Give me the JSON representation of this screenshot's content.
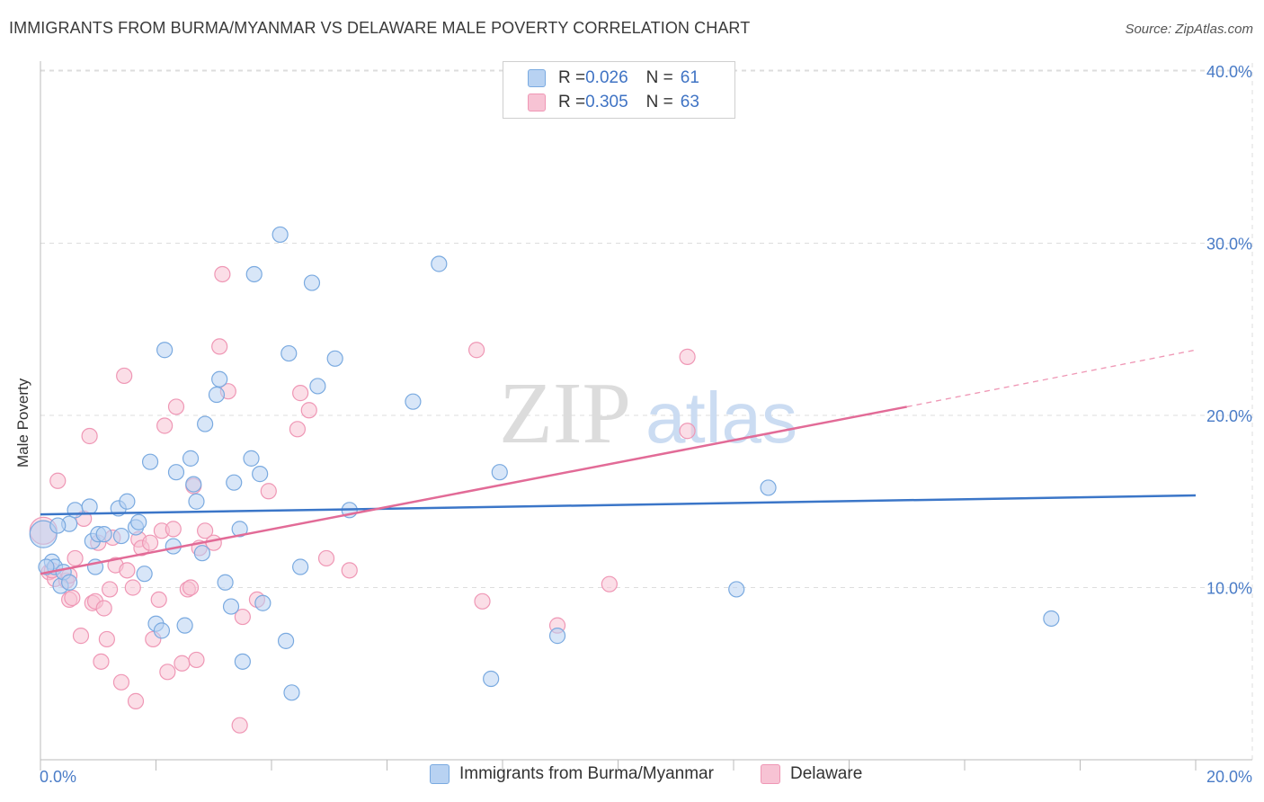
{
  "title": "IMMIGRANTS FROM BURMA/MYANMAR VS DELAWARE MALE POVERTY CORRELATION CHART",
  "source": "Source: ZipAtlas.com",
  "watermark": {
    "zip": "ZIP",
    "atlas": "atlas"
  },
  "legend": {
    "rows": [
      {
        "r_label": "R = ",
        "r_value": "0.026",
        "n_label": "N = ",
        "n_value": "61"
      },
      {
        "r_label": "R = ",
        "r_value": "0.305",
        "n_label": "N = ",
        "n_value": "63"
      }
    ]
  },
  "colors": {
    "blue_fill": "#b8d2f2",
    "blue_stroke": "#7aaae0",
    "blue_line": "#3b76c8",
    "pink_fill": "#f7c3d4",
    "pink_stroke": "#ef97b5",
    "pink_line": "#e26b97",
    "tick": "#4a7cc7",
    "grid": "#dddddd"
  },
  "chart_data": {
    "type": "scatter",
    "title": "IMMIGRANTS FROM BURMA/MYANMAR VS DELAWARE MALE POVERTY CORRELATION CHART",
    "xlabel": "",
    "ylabel": "Male Poverty",
    "xlim": [
      0,
      20
    ],
    "ylim": [
      0,
      41
    ],
    "x_tick_labels": [
      {
        "value": 0,
        "label": "0.0%"
      },
      {
        "value": 20,
        "label": "20.0%"
      }
    ],
    "y_tick_labels": [
      {
        "value": 10,
        "label": "10.0%"
      },
      {
        "value": 20,
        "label": "20.0%"
      },
      {
        "value": 30,
        "label": "30.0%"
      },
      {
        "value": 40,
        "label": "40.0%"
      }
    ],
    "grid": true,
    "legend_position": "bottom",
    "series": [
      {
        "name": "Immigrants from Burma/Myanmar",
        "color": "#b8d2f2",
        "points": [
          [
            0.05,
            13.1
          ],
          [
            0.2,
            11.5
          ],
          [
            0.25,
            11.2
          ],
          [
            0.35,
            10.1
          ],
          [
            0.4,
            10.9
          ],
          [
            0.5,
            10.3
          ],
          [
            0.5,
            13.7
          ],
          [
            0.6,
            14.5
          ],
          [
            0.85,
            14.7
          ],
          [
            0.9,
            12.7
          ],
          [
            0.95,
            11.2
          ],
          [
            1.0,
            13.1
          ],
          [
            1.1,
            13.1
          ],
          [
            1.35,
            14.6
          ],
          [
            1.4,
            13.0
          ],
          [
            1.5,
            15.0
          ],
          [
            1.65,
            13.5
          ],
          [
            1.7,
            13.8
          ],
          [
            1.8,
            10.8
          ],
          [
            1.9,
            17.3
          ],
          [
            2.0,
            7.9
          ],
          [
            2.1,
            7.5
          ],
          [
            2.15,
            23.8
          ],
          [
            2.3,
            12.4
          ],
          [
            2.35,
            16.7
          ],
          [
            2.5,
            7.8
          ],
          [
            2.6,
            17.5
          ],
          [
            2.65,
            16.0
          ],
          [
            2.7,
            15.0
          ],
          [
            2.8,
            12.0
          ],
          [
            2.85,
            19.5
          ],
          [
            3.05,
            21.2
          ],
          [
            3.1,
            22.1
          ],
          [
            3.2,
            10.3
          ],
          [
            3.3,
            8.9
          ],
          [
            3.35,
            16.1
          ],
          [
            3.45,
            13.4
          ],
          [
            3.5,
            5.7
          ],
          [
            3.65,
            17.5
          ],
          [
            3.7,
            28.2
          ],
          [
            3.8,
            16.6
          ],
          [
            3.85,
            9.1
          ],
          [
            4.15,
            30.5
          ],
          [
            4.25,
            6.9
          ],
          [
            4.3,
            23.6
          ],
          [
            4.35,
            3.9
          ],
          [
            4.5,
            11.2
          ],
          [
            4.7,
            27.7
          ],
          [
            4.8,
            21.7
          ],
          [
            5.1,
            23.3
          ],
          [
            5.35,
            14.5
          ],
          [
            6.45,
            20.8
          ],
          [
            6.9,
            28.8
          ],
          [
            7.8,
            4.7
          ],
          [
            7.95,
            16.7
          ],
          [
            8.95,
            7.2
          ],
          [
            12.05,
            9.9
          ],
          [
            12.6,
            15.8
          ],
          [
            17.5,
            8.2
          ],
          [
            0.1,
            11.2
          ],
          [
            0.3,
            13.6
          ]
        ]
      },
      {
        "name": "Delaware",
        "color": "#f7c3d4",
        "points": [
          [
            0.05,
            13.3
          ],
          [
            0.15,
            10.9
          ],
          [
            0.25,
            10.5
          ],
          [
            0.3,
            16.2
          ],
          [
            0.45,
            10.4
          ],
          [
            0.5,
            9.3
          ],
          [
            0.55,
            9.4
          ],
          [
            0.6,
            11.7
          ],
          [
            0.7,
            7.2
          ],
          [
            0.75,
            14.0
          ],
          [
            0.85,
            18.8
          ],
          [
            0.9,
            9.1
          ],
          [
            0.95,
            9.2
          ],
          [
            1.0,
            12.6
          ],
          [
            1.05,
            5.7
          ],
          [
            1.1,
            8.8
          ],
          [
            1.15,
            7.0
          ],
          [
            1.2,
            9.9
          ],
          [
            1.3,
            11.3
          ],
          [
            1.4,
            4.5
          ],
          [
            1.45,
            22.3
          ],
          [
            1.5,
            11.0
          ],
          [
            1.6,
            10.0
          ],
          [
            1.65,
            3.4
          ],
          [
            1.7,
            12.8
          ],
          [
            1.75,
            12.3
          ],
          [
            1.9,
            12.6
          ],
          [
            1.95,
            7.0
          ],
          [
            2.05,
            9.3
          ],
          [
            2.1,
            13.3
          ],
          [
            2.15,
            19.4
          ],
          [
            2.2,
            5.1
          ],
          [
            2.3,
            13.4
          ],
          [
            2.35,
            20.5
          ],
          [
            2.45,
            5.6
          ],
          [
            2.55,
            9.9
          ],
          [
            2.6,
            10.0
          ],
          [
            2.65,
            15.9
          ],
          [
            2.7,
            5.8
          ],
          [
            2.75,
            12.3
          ],
          [
            2.85,
            13.3
          ],
          [
            3.0,
            12.6
          ],
          [
            3.1,
            24.0
          ],
          [
            3.15,
            28.2
          ],
          [
            3.25,
            21.4
          ],
          [
            3.45,
            2.0
          ],
          [
            3.5,
            8.3
          ],
          [
            3.75,
            9.3
          ],
          [
            3.95,
            15.6
          ],
          [
            4.45,
            19.2
          ],
          [
            4.5,
            21.3
          ],
          [
            4.65,
            20.3
          ],
          [
            4.95,
            11.7
          ],
          [
            5.35,
            11.0
          ],
          [
            7.55,
            23.8
          ],
          [
            7.65,
            9.2
          ],
          [
            8.95,
            7.8
          ],
          [
            9.85,
            10.2
          ],
          [
            11.2,
            23.4
          ],
          [
            11.2,
            19.1
          ],
          [
            0.2,
            11.0
          ],
          [
            0.5,
            10.7
          ],
          [
            1.25,
            12.9
          ]
        ]
      }
    ],
    "trend_lines": [
      {
        "series": "Immigrants from Burma/Myanmar",
        "x": [
          0,
          20
        ],
        "y": [
          14.25,
          15.35
        ],
        "dashed_extension": false
      },
      {
        "series": "Delaware",
        "x": [
          0,
          15
        ],
        "y": [
          10.8,
          20.5
        ],
        "dashed_x": [
          15,
          20
        ],
        "dashed_y": [
          20.5,
          23.8
        ]
      }
    ]
  }
}
